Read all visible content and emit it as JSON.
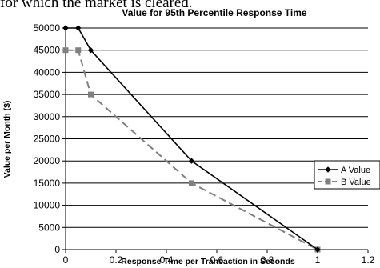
{
  "page": {
    "caption": "for which the market is cleared."
  },
  "chart_data": {
    "type": "line",
    "title": "Value for 95th Percentile Response Time",
    "xlabel": "Response Time per Transaction in Seconds",
    "ylabel": "Value per Month ($)",
    "xlim": [
      0,
      1.2
    ],
    "ylim": [
      0,
      50000
    ],
    "xticks": [
      0,
      0.2,
      0.4,
      0.6,
      0.8,
      1,
      1.2
    ],
    "xtick_labels": [
      "0",
      "0.2",
      "0.4",
      "0.6",
      "0.8",
      "1",
      "1.2"
    ],
    "yticks": [
      0,
      5000,
      10000,
      15000,
      20000,
      25000,
      30000,
      35000,
      40000,
      45000,
      50000
    ],
    "ytick_labels": [
      "0",
      "5000",
      "10000",
      "15000",
      "20000",
      "25000",
      "30000",
      "35000",
      "40000",
      "45000",
      "50000"
    ],
    "grid": "horizontal",
    "legend_position": "right",
    "series": [
      {
        "name": "A Value",
        "color": "#000000",
        "line_style": "solid",
        "marker": "diamond",
        "x": [
          0,
          0.05,
          0.1,
          0.5,
          1
        ],
        "y": [
          50000,
          50000,
          45000,
          20000,
          0
        ]
      },
      {
        "name": "B Value",
        "color": "#808080",
        "line_style": "dashed",
        "marker": "square",
        "x": [
          0,
          0.05,
          0.1,
          0.5,
          1
        ],
        "y": [
          45000,
          45000,
          35000,
          15000,
          0
        ]
      }
    ]
  }
}
